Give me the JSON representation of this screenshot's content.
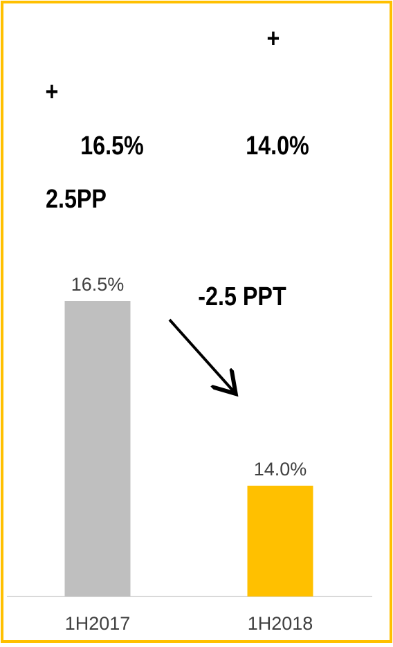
{
  "chart_data": {
    "type": "bar",
    "categories": [
      "1H2017",
      "1H2018"
    ],
    "values": [
      16.5,
      14.0
    ],
    "value_labels": [
      "16.5%",
      "14.0%"
    ],
    "colors": [
      "#bfbfbf",
      "#ffc000"
    ],
    "ylim": [
      12.5,
      20.5
    ],
    "annotations": [
      {
        "text": "+"
      },
      {
        "text": "+"
      },
      {
        "text": "16.5%"
      },
      {
        "text": "14.0%"
      },
      {
        "text": "2.5PP"
      },
      {
        "text": "-2.5 PPT",
        "color": "#e46c0a"
      }
    ]
  }
}
